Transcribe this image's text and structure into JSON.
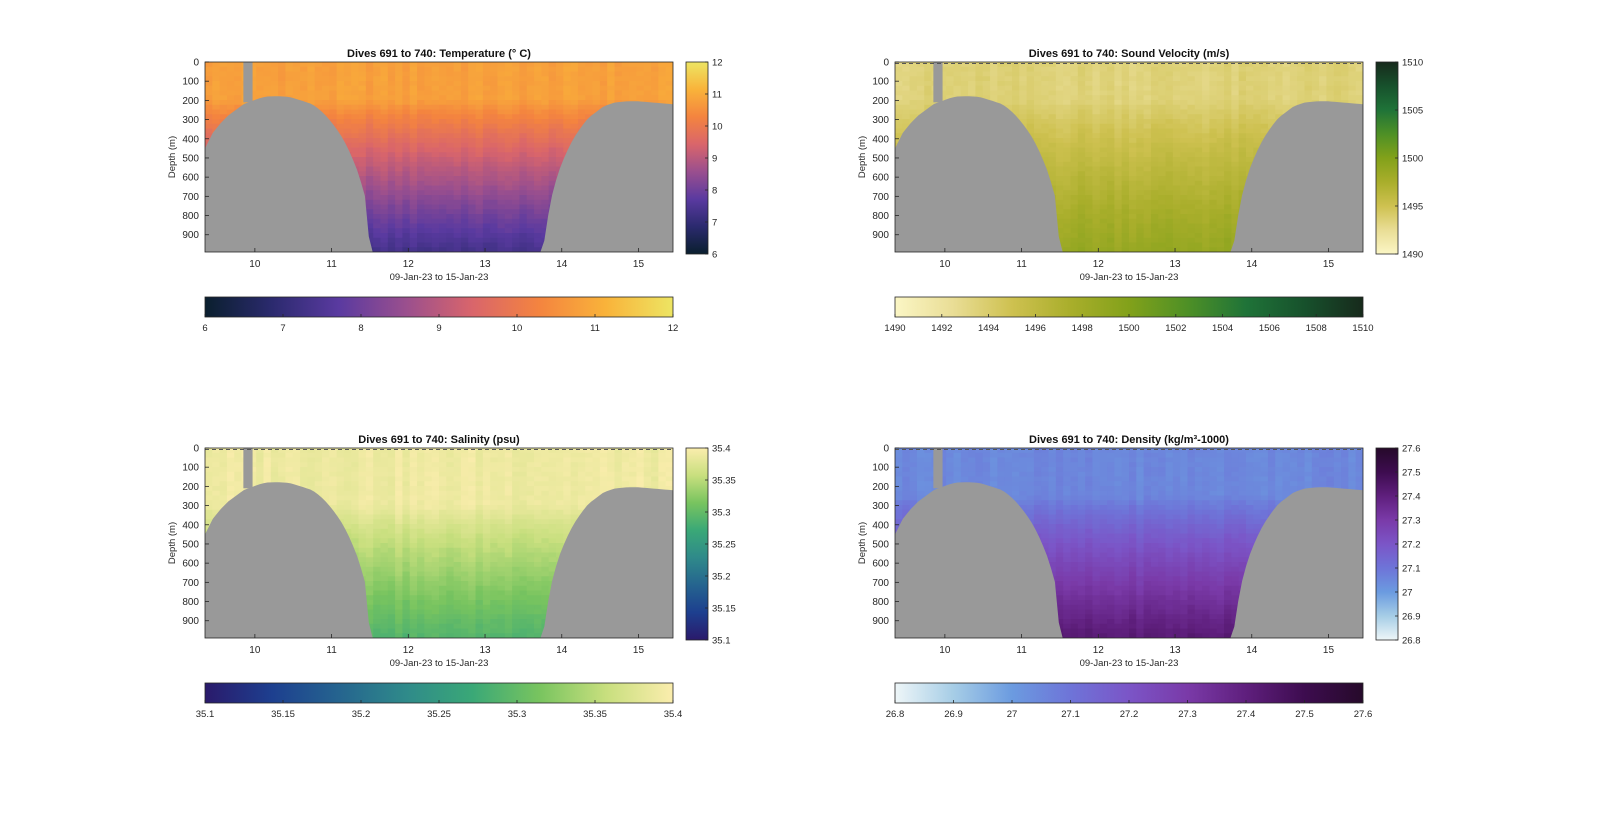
{
  "figure": {
    "xlabel": "09-Jan-23 to 15-Jan-23",
    "ylabel": "Depth (m)",
    "x_range": [
      9.35,
      15.45
    ],
    "y_range": [
      0,
      990
    ],
    "x_ticks": [
      "10",
      "11",
      "12",
      "13",
      "14",
      "15"
    ],
    "y_ticks": [
      "0",
      "100",
      "200",
      "300",
      "400",
      "500",
      "600",
      "700",
      "800",
      "900"
    ],
    "bathymetry_color": "#999999",
    "bathymetry": {
      "x": [
        9.35,
        9.45,
        9.55,
        9.65,
        9.75,
        9.85,
        9.95,
        10.05,
        10.15,
        10.3,
        10.45,
        10.6,
        10.75,
        10.85,
        10.95,
        11.05,
        11.15,
        11.25,
        11.35,
        11.45,
        11.5,
        13.75,
        13.85,
        13.95,
        14.05,
        14.15,
        14.25,
        14.35,
        14.45,
        14.55,
        14.7,
        14.85,
        15.0,
        15.15,
        15.3,
        15.45
      ],
      "depth": [
        450,
        370,
        320,
        280,
        250,
        220,
        205,
        190,
        180,
        178,
        182,
        200,
        220,
        250,
        290,
        340,
        400,
        480,
        580,
        720,
        990,
        990,
        730,
        580,
        480,
        400,
        340,
        290,
        260,
        230,
        210,
        205,
        205,
        210,
        215,
        220
      ],
      "gap": {
        "x_start": 9.85,
        "x_end": 9.97,
        "depth": 210
      }
    }
  },
  "chart_data": [
    {
      "type": "heatmap",
      "title": "Dives 691 to 740: Temperature (° C)",
      "variable": "temperature",
      "unit": "°C",
      "clim": [
        6,
        12
      ],
      "side_ticks": [
        "6",
        "7",
        "8",
        "9",
        "10",
        "11",
        "12"
      ],
      "bottom_ticks": [
        "6",
        "7",
        "8",
        "9",
        "10",
        "11",
        "12"
      ],
      "colormap": [
        "#0a1f2e",
        "#2b2a6e",
        "#5a3aa0",
        "#9a4f8e",
        "#d9656b",
        "#f4843f",
        "#f9b33a",
        "#ede563"
      ],
      "surface_value": 10.8,
      "deep_value": 7.3,
      "thermocline_depth": 200,
      "dashed_surface": false
    },
    {
      "type": "heatmap",
      "title": "Dives 691 to 740: Sound Velocity (m/s)",
      "variable": "sound_velocity",
      "unit": "m/s",
      "clim": [
        1490,
        1510
      ],
      "side_ticks": [
        "1490",
        "1495",
        "1500",
        "1505",
        "1510"
      ],
      "bottom_ticks": [
        "1490",
        "1492",
        "1494",
        "1496",
        "1498",
        "1500",
        "1502",
        "1504",
        "1506",
        "1508",
        "1510"
      ],
      "colormap": [
        "#fbf6c5",
        "#e9dd95",
        "#cec150",
        "#a9ae2b",
        "#82a11a",
        "#4e9026",
        "#1f7338",
        "#17512c",
        "#172a1c"
      ],
      "surface_value": 1493.5,
      "deep_value": 1498.8,
      "thermocline_depth": 200,
      "dashed_surface": true
    },
    {
      "type": "heatmap",
      "title": "Dives 691 to 740: Salinity (psu)",
      "variable": "salinity",
      "unit": "psu",
      "clim": [
        35.1,
        35.4
      ],
      "side_ticks": [
        "35.1",
        "35.15",
        "35.2",
        "35.25",
        "35.3",
        "35.35",
        "35.4"
      ],
      "bottom_ticks": [
        "35.1",
        "35.15",
        "35.2",
        "35.25",
        "35.3",
        "35.35",
        "35.4"
      ],
      "colormap": [
        "#2a1a6b",
        "#1d3f8f",
        "#25648f",
        "#2f8a8a",
        "#3aa877",
        "#78c45f",
        "#c8df7e",
        "#fbedad"
      ],
      "surface_value": 35.39,
      "deep_value": 35.29,
      "thermocline_depth": 300,
      "dashed_surface": true
    },
    {
      "type": "heatmap",
      "title": "Dives 691 to 740: Density (kg/m³-1000)",
      "variable": "density",
      "unit": "kg/m³-1000",
      "clim": [
        26.8,
        27.6
      ],
      "side_ticks": [
        "26.8",
        "26.9",
        "27",
        "27.1",
        "27.2",
        "27.3",
        "27.4",
        "27.5",
        "27.6"
      ],
      "bottom_ticks": [
        "26.8",
        "26.9",
        "27",
        "27.1",
        "27.2",
        "27.3",
        "27.4",
        "27.5",
        "27.6"
      ],
      "colormap": [
        "#eef6f8",
        "#a6cde6",
        "#6b9be0",
        "#6e74d8",
        "#7b55c7",
        "#7a3aa8",
        "#5f1f7d",
        "#3d0c4f",
        "#260a2a"
      ],
      "surface_value": 27.05,
      "deep_value": 27.42,
      "thermocline_depth": 250,
      "dashed_surface": true
    }
  ]
}
